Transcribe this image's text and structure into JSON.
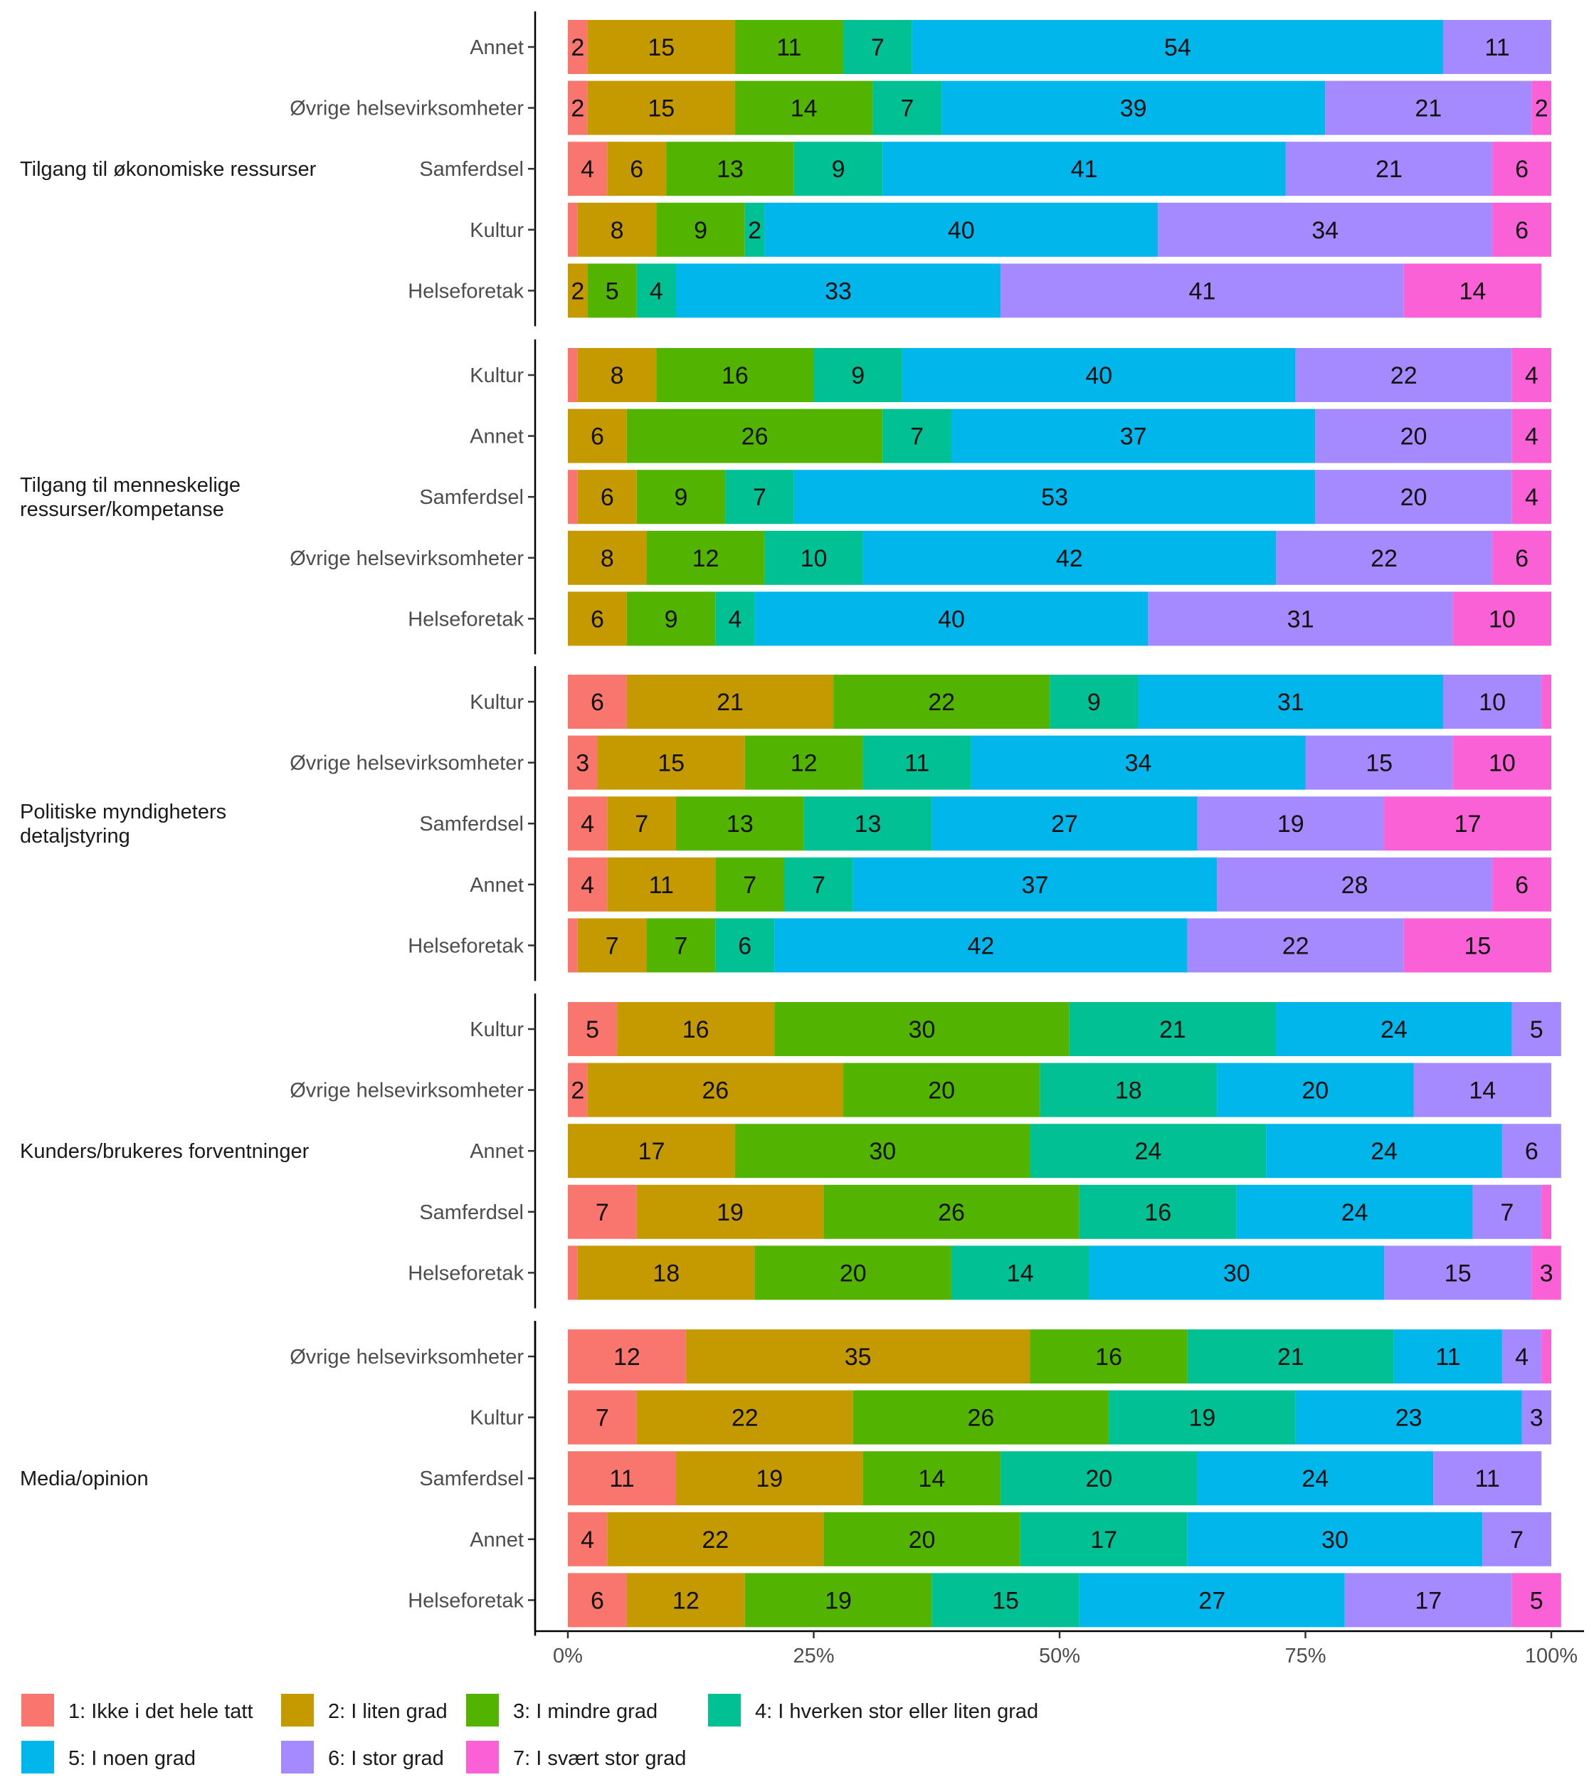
{
  "chart_data": {
    "type": "bar",
    "orientation": "horizontal",
    "stacked": "percent",
    "xlim": [
      0,
      100
    ],
    "x_ticks": [
      "0%",
      "25%",
      "50%",
      "75%",
      "100%"
    ],
    "legend_position": "bottom",
    "categories_legend": [
      {
        "label": "1: Ikke i det hele tatt",
        "color": "#F8766D"
      },
      {
        "label": "2: I liten grad",
        "color": "#C49A00"
      },
      {
        "label": "3: I mindre grad",
        "color": "#53B400"
      },
      {
        "label": "4: I hverken stor eller liten grad",
        "color": "#00C094"
      },
      {
        "label": "5: I noen grad",
        "color": "#00B6EB"
      },
      {
        "label": "6: I stor grad",
        "color": "#A58AFF"
      },
      {
        "label": "7: I svært stor grad",
        "color": "#FB61D7"
      }
    ],
    "groups": [
      {
        "name": "Tilgang til økonomiske ressurser",
        "bars": [
          {
            "label": "Annet",
            "values": [
              2,
              15,
              11,
              7,
              54,
              11,
              0
            ]
          },
          {
            "label": "Øvrige helsevirksomheter",
            "values": [
              2,
              15,
              14,
              7,
              39,
              21,
              2
            ]
          },
          {
            "label": "Samferdsel",
            "values": [
              4,
              6,
              13,
              9,
              41,
              21,
              6
            ]
          },
          {
            "label": "Kultur",
            "values": [
              1,
              8,
              9,
              2,
              40,
              34,
              6
            ]
          },
          {
            "label": "Helseforetak",
            "values": [
              0,
              2,
              5,
              4,
              33,
              41,
              14
            ]
          }
        ]
      },
      {
        "name": "Tilgang til menneskelige ressurser/kompetanse",
        "bars": [
          {
            "label": "Kultur",
            "values": [
              1,
              8,
              16,
              9,
              40,
              22,
              4
            ]
          },
          {
            "label": "Annet",
            "values": [
              0,
              6,
              26,
              7,
              37,
              20,
              4
            ]
          },
          {
            "label": "Samferdsel",
            "values": [
              1,
              6,
              9,
              7,
              53,
              20,
              4
            ]
          },
          {
            "label": "Øvrige helsevirksomheter",
            "values": [
              0,
              8,
              12,
              10,
              42,
              22,
              6
            ]
          },
          {
            "label": "Helseforetak",
            "values": [
              0,
              6,
              9,
              4,
              40,
              31,
              10
            ]
          }
        ]
      },
      {
        "name": "Politiske myndigheters detaljstyring",
        "bars": [
          {
            "label": "Kultur",
            "values": [
              6,
              21,
              22,
              9,
              31,
              10,
              1
            ]
          },
          {
            "label": "Øvrige helsevirksomheter",
            "values": [
              3,
              15,
              12,
              11,
              34,
              15,
              10
            ]
          },
          {
            "label": "Samferdsel",
            "values": [
              4,
              7,
              13,
              13,
              27,
              19,
              17
            ]
          },
          {
            "label": "Annet",
            "values": [
              4,
              11,
              7,
              7,
              37,
              28,
              6
            ]
          },
          {
            "label": "Helseforetak",
            "values": [
              1,
              7,
              7,
              6,
              42,
              22,
              15
            ]
          }
        ]
      },
      {
        "name": "Kunders/brukeres forventninger",
        "bars": [
          {
            "label": "Kultur",
            "values": [
              5,
              16,
              30,
              21,
              24,
              5,
              0
            ]
          },
          {
            "label": "Øvrige helsevirksomheter",
            "values": [
              2,
              26,
              20,
              18,
              20,
              14,
              0
            ]
          },
          {
            "label": "Annet",
            "values": [
              0,
              17,
              30,
              24,
              24,
              6,
              0
            ]
          },
          {
            "label": "Samferdsel",
            "values": [
              7,
              19,
              26,
              16,
              24,
              7,
              1
            ]
          },
          {
            "label": "Helseforetak",
            "values": [
              1,
              18,
              20,
              14,
              30,
              15,
              3
            ]
          }
        ]
      },
      {
        "name": "Media/opinion",
        "bars": [
          {
            "label": "Øvrige helsevirksomheter",
            "values": [
              12,
              35,
              16,
              21,
              11,
              4,
              1
            ]
          },
          {
            "label": "Kultur",
            "values": [
              7,
              22,
              26,
              19,
              23,
              3,
              0
            ]
          },
          {
            "label": "Samferdsel",
            "values": [
              11,
              19,
              14,
              20,
              24,
              11,
              0
            ]
          },
          {
            "label": "Annet",
            "values": [
              4,
              22,
              20,
              17,
              30,
              7,
              0
            ]
          },
          {
            "label": "Helseforetak",
            "values": [
              6,
              12,
              19,
              15,
              27,
              17,
              5
            ]
          }
        ]
      }
    ]
  }
}
